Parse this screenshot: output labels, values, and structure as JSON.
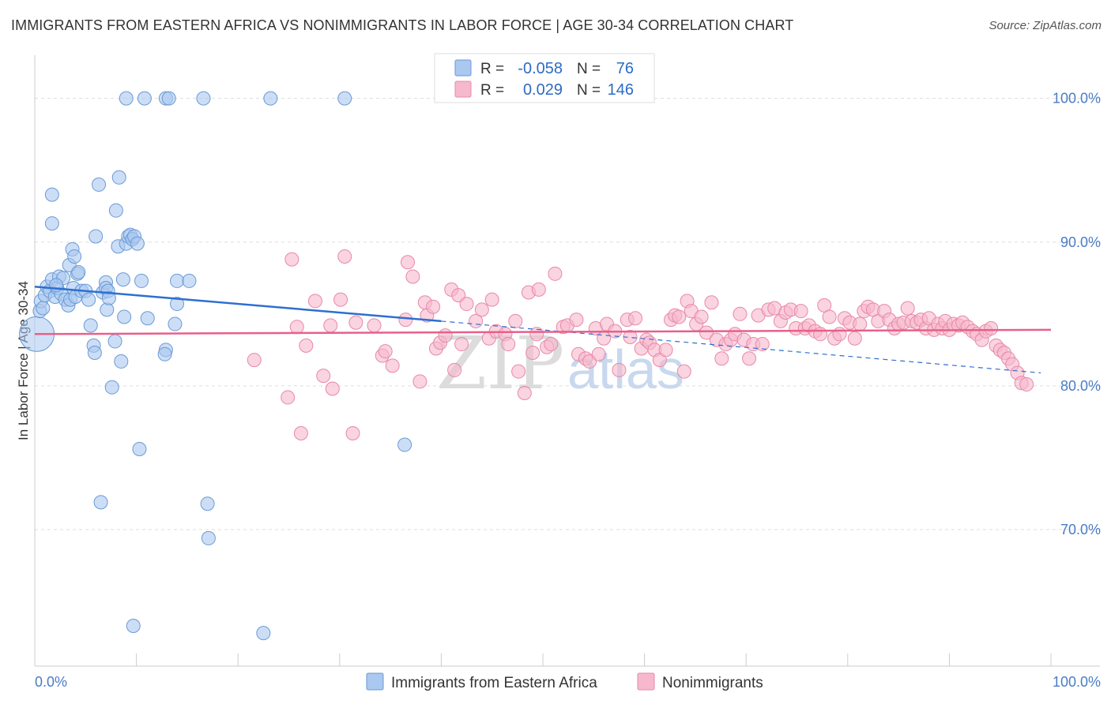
{
  "header": {
    "title": "IMMIGRANTS FROM EASTERN AFRICA VS NONIMMIGRANTS IN LABOR FORCE | AGE 30-34 CORRELATION CHART",
    "source": "Source: ZipAtlas.com"
  },
  "watermark": {
    "zip": "ZIP",
    "atlas": "atlas"
  },
  "colors": {
    "blue_fill": "#aac8f0",
    "blue_stroke": "#6a9ad6",
    "blue_line": "#2d6fd0",
    "pink_fill": "#f6b8cc",
    "pink_stroke": "#e888a8",
    "pink_line": "#e8608a",
    "grid": "#dddddd",
    "tick": "#4a7cc4"
  },
  "legend": {
    "blue": {
      "r_label": "R =",
      "r_value": "-0.058",
      "n_label": "N =",
      "n_value": "76"
    },
    "pink": {
      "r_label": "R =",
      "r_value": "0.029",
      "n_label": "N =",
      "n_value": "146"
    }
  },
  "bottom_legend": {
    "blue": "Immigrants from Eastern Africa",
    "pink": "Nonimmigrants"
  },
  "chart_data": {
    "type": "scatter",
    "title": "IMMIGRANTS FROM EASTERN AFRICA VS NONIMMIGRANTS IN LABOR FORCE | AGE 30-34 CORRELATION CHART",
    "xlabel": "",
    "ylabel": "In Labor Force | Age 30-34",
    "xlim": [
      0,
      100
    ],
    "ylim": [
      60.5,
      103
    ],
    "x_tick_labels": [
      {
        "value": 0,
        "label": "0.0%"
      },
      {
        "value": 100,
        "label": "100.0%"
      }
    ],
    "y_tick_labels": [
      {
        "value": 100,
        "label": "100.0%"
      },
      {
        "value": 90,
        "label": "90.0%"
      },
      {
        "value": 80,
        "label": "80.0%"
      },
      {
        "value": 70,
        "label": "70.0%"
      }
    ],
    "series": [
      {
        "name": "Immigrants from Eastern Africa",
        "color": "blue",
        "r": -0.058,
        "n": 76,
        "trend": {
          "x0": 0,
          "y0": 86.9,
          "x1": 40,
          "y1": 84.5,
          "dash_x1": 99,
          "dash_y1": 80.9
        },
        "points": [
          [
            0.2,
            83.6,
            "big"
          ],
          [
            0.5,
            85.2
          ],
          [
            0.6,
            85.9
          ],
          [
            0.8,
            85.4
          ],
          [
            1.0,
            86.3
          ],
          [
            1.2,
            86.9
          ],
          [
            1.5,
            86.6
          ],
          [
            1.7,
            87.4
          ],
          [
            2.0,
            86.2
          ],
          [
            2.2,
            86.8
          ],
          [
            2.4,
            87.6
          ],
          [
            2.6,
            86.4
          ],
          [
            3.0,
            86.0
          ],
          [
            3.3,
            85.6
          ],
          [
            3.5,
            86.0
          ],
          [
            3.8,
            86.8
          ],
          [
            4.0,
            86.2
          ],
          [
            4.2,
            87.8
          ],
          [
            4.6,
            86.6
          ],
          [
            5.0,
            86.6
          ],
          [
            5.3,
            86.0
          ],
          [
            1.7,
            93.3
          ],
          [
            1.7,
            91.3
          ],
          [
            3.4,
            88.4
          ],
          [
            4.3,
            87.9
          ],
          [
            5.5,
            84.2
          ],
          [
            5.8,
            82.8
          ],
          [
            5.9,
            82.3
          ],
          [
            6.0,
            90.4
          ],
          [
            6.3,
            94.0
          ],
          [
            6.7,
            86.5
          ],
          [
            7.0,
            87.2
          ],
          [
            7.0,
            86.8
          ],
          [
            7.1,
            85.3
          ],
          [
            7.2,
            86.6
          ],
          [
            7.3,
            86.1
          ],
          [
            7.6,
            79.9
          ],
          [
            7.9,
            83.1
          ],
          [
            8.0,
            92.2
          ],
          [
            8.2,
            89.7
          ],
          [
            8.3,
            94.5
          ],
          [
            8.5,
            81.7
          ],
          [
            8.7,
            87.4
          ],
          [
            8.8,
            84.8
          ],
          [
            9.0,
            89.9
          ],
          [
            9.2,
            90.4
          ],
          [
            9.4,
            90.5
          ],
          [
            9.6,
            90.2
          ],
          [
            9.8,
            90.4
          ],
          [
            10.1,
            89.9
          ],
          [
            10.5,
            87.3
          ],
          [
            11.1,
            84.7
          ],
          [
            12.9,
            82.5
          ],
          [
            12.8,
            82.2
          ],
          [
            13.8,
            84.3
          ],
          [
            14.0,
            85.7
          ],
          [
            14.0,
            87.3
          ],
          [
            15.2,
            87.3
          ],
          [
            9.0,
            100.0
          ],
          [
            10.8,
            100.0
          ],
          [
            12.9,
            100.0
          ],
          [
            13.2,
            100.0
          ],
          [
            16.6,
            100.0
          ],
          [
            23.2,
            100.0
          ],
          [
            30.5,
            100.0
          ],
          [
            6.5,
            71.9
          ],
          [
            10.3,
            75.6
          ],
          [
            17.0,
            71.8
          ],
          [
            17.1,
            69.4
          ],
          [
            36.4,
            75.9
          ],
          [
            9.7,
            63.3
          ],
          [
            22.5,
            62.8
          ],
          [
            3.7,
            89.5
          ],
          [
            3.9,
            89.0
          ],
          [
            2.8,
            87.5
          ],
          [
            2.1,
            87.0
          ]
        ]
      },
      {
        "name": "Nonimmigrants",
        "color": "pink",
        "r": 0.029,
        "n": 146,
        "trend": {
          "x0": 0,
          "y0": 83.6,
          "x1": 100,
          "y1": 83.9
        },
        "points": [
          [
            21.6,
            81.8
          ],
          [
            24.9,
            79.2
          ],
          [
            25.3,
            88.8
          ],
          [
            25.8,
            84.1
          ],
          [
            26.2,
            76.7
          ],
          [
            26.7,
            82.8
          ],
          [
            27.6,
            85.9
          ],
          [
            28.4,
            80.7
          ],
          [
            29.1,
            84.2
          ],
          [
            29.3,
            79.8
          ],
          [
            30.1,
            86.0
          ],
          [
            30.5,
            89.0
          ],
          [
            31.3,
            76.7
          ],
          [
            31.6,
            84.4
          ],
          [
            33.4,
            84.2
          ],
          [
            34.2,
            82.1
          ],
          [
            34.5,
            82.4
          ],
          [
            35.2,
            81.4
          ],
          [
            36.5,
            84.6
          ],
          [
            36.7,
            88.6
          ],
          [
            37.2,
            87.6
          ],
          [
            37.9,
            80.3
          ],
          [
            38.4,
            85.8
          ],
          [
            38.6,
            84.9
          ],
          [
            39.2,
            85.5
          ],
          [
            39.5,
            82.6
          ],
          [
            39.9,
            83.0
          ],
          [
            40.4,
            83.5
          ],
          [
            41.0,
            86.7
          ],
          [
            41.3,
            81.1
          ],
          [
            41.7,
            86.3
          ],
          [
            42.0,
            82.9
          ],
          [
            42.5,
            85.7
          ],
          [
            43.4,
            84.5
          ],
          [
            44.0,
            85.3
          ],
          [
            44.7,
            83.3
          ],
          [
            45.0,
            86.0
          ],
          [
            45.4,
            83.8
          ],
          [
            46.3,
            83.6
          ],
          [
            46.6,
            82.9
          ],
          [
            47.3,
            84.5
          ],
          [
            47.6,
            81.0
          ],
          [
            48.2,
            79.5
          ],
          [
            48.6,
            86.5
          ],
          [
            49.0,
            82.3
          ],
          [
            49.4,
            83.6
          ],
          [
            49.6,
            86.7
          ],
          [
            50.4,
            82.7
          ],
          [
            50.8,
            82.9
          ],
          [
            51.2,
            87.8
          ],
          [
            52.0,
            84.1
          ],
          [
            52.4,
            84.2
          ],
          [
            53.3,
            84.6
          ],
          [
            53.5,
            82.2
          ],
          [
            54.2,
            81.9
          ],
          [
            54.6,
            81.7
          ],
          [
            55.2,
            84.0
          ],
          [
            55.5,
            82.2
          ],
          [
            56.0,
            83.3
          ],
          [
            56.3,
            84.3
          ],
          [
            57.1,
            83.8
          ],
          [
            57.5,
            81.1
          ],
          [
            58.3,
            84.6
          ],
          [
            58.6,
            83.4
          ],
          [
            59.1,
            84.7
          ],
          [
            59.7,
            82.6
          ],
          [
            60.2,
            83.2
          ],
          [
            60.5,
            83.0
          ],
          [
            61.0,
            82.5
          ],
          [
            61.5,
            81.8
          ],
          [
            62.1,
            82.5
          ],
          [
            62.6,
            84.6
          ],
          [
            63.0,
            84.9
          ],
          [
            63.4,
            84.8
          ],
          [
            63.9,
            81.0
          ],
          [
            64.2,
            85.9
          ],
          [
            64.6,
            85.2
          ],
          [
            65.1,
            84.3
          ],
          [
            65.6,
            84.8
          ],
          [
            66.1,
            83.7
          ],
          [
            66.6,
            85.8
          ],
          [
            67.1,
            83.2
          ],
          [
            67.6,
            81.9
          ],
          [
            68.0,
            82.9
          ],
          [
            68.5,
            83.2
          ],
          [
            68.9,
            83.6
          ],
          [
            69.4,
            85.0
          ],
          [
            69.8,
            83.2
          ],
          [
            70.3,
            81.9
          ],
          [
            70.7,
            82.9
          ],
          [
            71.2,
            84.9
          ],
          [
            71.6,
            82.9
          ],
          [
            72.2,
            85.3
          ],
          [
            72.8,
            85.4
          ],
          [
            73.4,
            84.5
          ],
          [
            73.9,
            85.1
          ],
          [
            74.4,
            85.3
          ],
          [
            74.9,
            84.0
          ],
          [
            75.4,
            85.2
          ],
          [
            75.8,
            84.0
          ],
          [
            76.2,
            84.2
          ],
          [
            76.8,
            83.8
          ],
          [
            77.3,
            83.6
          ],
          [
            77.7,
            85.6
          ],
          [
            78.2,
            84.8
          ],
          [
            78.7,
            83.3
          ],
          [
            79.2,
            83.6
          ],
          [
            79.7,
            84.7
          ],
          [
            80.2,
            84.4
          ],
          [
            80.7,
            83.3
          ],
          [
            81.2,
            84.3
          ],
          [
            81.6,
            85.2
          ],
          [
            82.0,
            85.5
          ],
          [
            82.5,
            85.3
          ],
          [
            83.0,
            84.5
          ],
          [
            83.6,
            85.2
          ],
          [
            84.1,
            84.6
          ],
          [
            84.6,
            84.0
          ],
          [
            85.0,
            84.3
          ],
          [
            85.5,
            84.4
          ],
          [
            85.9,
            85.4
          ],
          [
            86.3,
            84.5
          ],
          [
            86.8,
            84.4
          ],
          [
            87.2,
            84.6
          ],
          [
            87.7,
            84.0
          ],
          [
            88.0,
            84.7
          ],
          [
            88.5,
            83.9
          ],
          [
            88.9,
            84.3
          ],
          [
            89.3,
            84.0
          ],
          [
            89.6,
            84.5
          ],
          [
            90.0,
            83.9
          ],
          [
            90.4,
            84.3
          ],
          [
            90.9,
            84.2
          ],
          [
            91.3,
            84.4
          ],
          [
            91.8,
            84.1
          ],
          [
            92.3,
            83.8
          ],
          [
            92.7,
            83.6
          ],
          [
            93.2,
            83.2
          ],
          [
            93.6,
            83.8
          ],
          [
            94.1,
            84.0
          ],
          [
            94.6,
            82.8
          ],
          [
            95.0,
            82.5
          ],
          [
            95.4,
            82.3
          ],
          [
            95.8,
            81.9
          ],
          [
            96.2,
            81.5
          ],
          [
            96.7,
            80.9
          ],
          [
            97.1,
            80.2
          ],
          [
            97.6,
            80.1
          ]
        ]
      }
    ]
  }
}
